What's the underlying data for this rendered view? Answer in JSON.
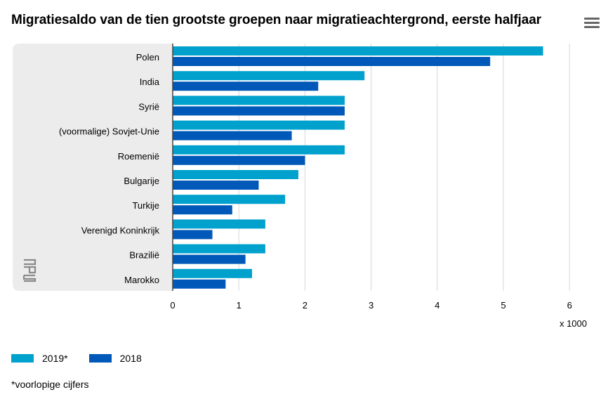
{
  "chart_data": {
    "type": "bar",
    "orientation": "horizontal",
    "title": "Migratiesaldo van de tien grootste groepen naar migratieachtergrond, eerste halfjaar",
    "categories": [
      "Polen",
      "India",
      "Syrië",
      "(voormalige) Sovjet-Unie",
      "Roemenië",
      "Bulgarije",
      "Turkije",
      "Verenigd Koninkrijk",
      "Brazilië",
      "Marokko"
    ],
    "series": [
      {
        "name": "2019*",
        "color": "#00a1cd",
        "values": [
          5.6,
          2.9,
          2.6,
          2.6,
          2.6,
          1.9,
          1.7,
          1.4,
          1.4,
          1.2
        ]
      },
      {
        "name": "2018",
        "color": "#0058b8",
        "values": [
          4.8,
          2.2,
          2.6,
          1.8,
          2.0,
          1.3,
          0.9,
          0.6,
          1.1,
          0.8
        ]
      }
    ],
    "xticks": [
      "0",
      "1",
      "2",
      "3",
      "4",
      "5",
      "6"
    ],
    "xlim": [
      0,
      6
    ],
    "xunit": "x 1000",
    "grid": true,
    "legend_position": "bottom-left",
    "footnote": "*voorlopige cijfers"
  },
  "menu_icon": "hamburger-menu-icon",
  "logo_icon": "cbs-logo-icon"
}
